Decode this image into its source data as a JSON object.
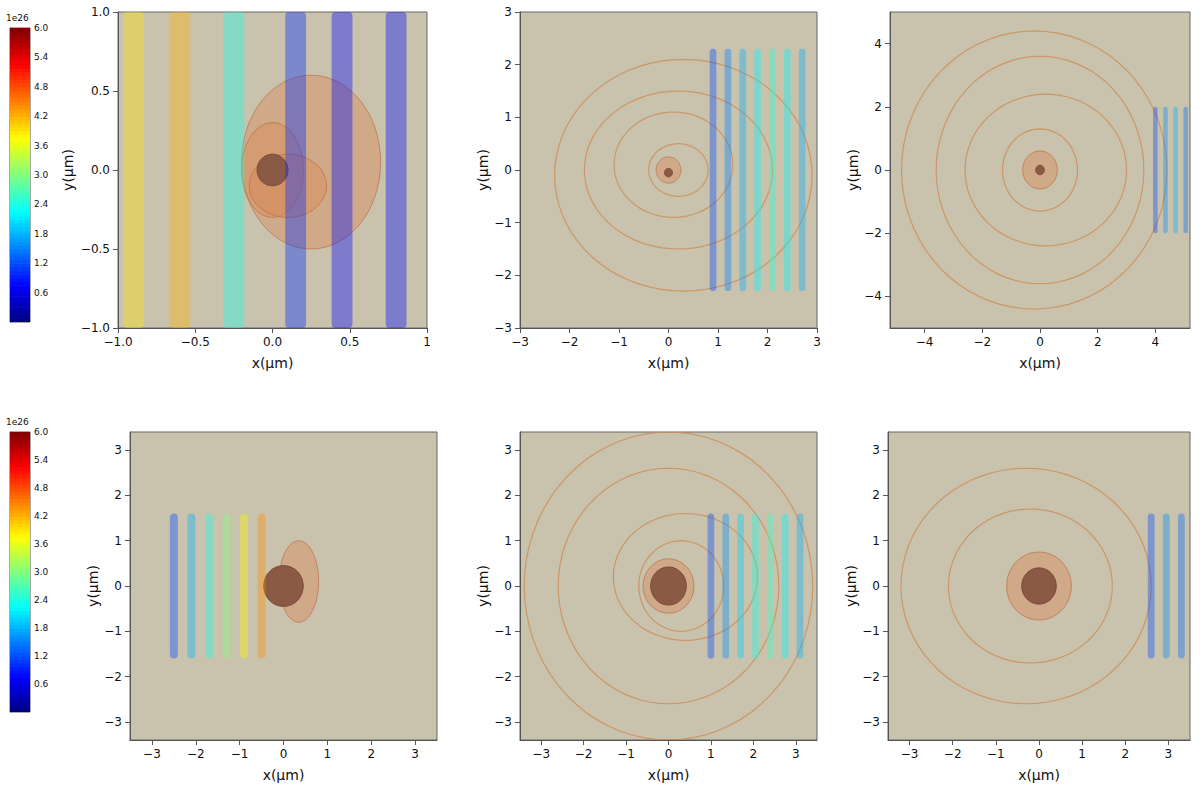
{
  "chart_data": [
    {
      "type": "colorbar",
      "label": "1e26",
      "ylim": [
        0,
        6
      ],
      "yticks": [
        0.6,
        1.2,
        1.8,
        2.4,
        {
          "value": 3,
          "label": "3.0"
        },
        3.6,
        4.2,
        4.8,
        5.4,
        {
          "value": 6,
          "label": "6.0"
        }
      ]
    },
    {
      "type": "density_map",
      "x_label": "x(μm)",
      "y_label": "y(μm)",
      "xlim": [
        -1,
        1
      ],
      "ylim": [
        -1,
        1
      ],
      "xticks": [
        {
          "value": -1,
          "label": "−1.0"
        },
        {
          "value": -0.5,
          "label": "−0.5"
        },
        {
          "value": 0,
          "label": "0.0"
        },
        0.5,
        1
      ],
      "yticks": [
        {
          "value": -1,
          "label": "−1.0"
        },
        {
          "value": -0.5,
          "label": "−0.5"
        },
        {
          "value": 0,
          "label": "0.0"
        },
        0.5,
        {
          "value": 1,
          "label": "1.0"
        }
      ],
      "target": {
        "x": 0,
        "y": 0,
        "r": 0.1
      },
      "plasma": [
        {
          "cx": 0.25,
          "cy": 0.05,
          "rx": 0.45,
          "ry": 0.55
        },
        {
          "cx": 0.0,
          "cy": 0.0,
          "rx": 0.2,
          "ry": 0.3
        },
        {
          "cx": 0.1,
          "cy": -0.1,
          "rx": 0.25,
          "ry": 0.2
        }
      ],
      "shells": [],
      "field": {
        "x": [
          -0.9,
          -0.6,
          -0.25,
          0.15,
          0.45,
          0.8
        ],
        "values": [
          3.9,
          4.2,
          2.4,
          1.0,
          0.8,
          0.8
        ],
        "y_extent": [
          -1,
          1
        ]
      }
    },
    {
      "type": "density_map",
      "x_label": "x(μm)",
      "y_label": "y(μm)",
      "xlim": [
        -3,
        3
      ],
      "ylim": [
        -3,
        3
      ],
      "xticks": [
        {
          "value": -3,
          "label": "−3"
        },
        {
          "value": -2,
          "label": "−2"
        },
        {
          "value": -1,
          "label": "−1"
        },
        0,
        1,
        2,
        3
      ],
      "yticks": [
        {
          "value": -3,
          "label": "−3"
        },
        {
          "value": -2,
          "label": "−2"
        },
        {
          "value": -1,
          "label": "−1"
        },
        0,
        1,
        2,
        3
      ],
      "target": {
        "x": 0,
        "y": -0.05,
        "r": 0.08
      },
      "plasma": [
        {
          "cx": 0,
          "cy": 0,
          "rx": 0.25,
          "ry": 0.25
        }
      ],
      "shells": [
        {
          "cx": 0.2,
          "cy": 0,
          "rx": 0.6,
          "ry": 0.5
        },
        {
          "cx": 0.1,
          "cy": 0.1,
          "rx": 1.2,
          "ry": 1.0
        },
        {
          "cx": 0.2,
          "cy": 0,
          "rx": 1.9,
          "ry": 1.5
        },
        {
          "cx": 0.3,
          "cy": -0.1,
          "rx": 2.6,
          "ry": 2.2
        }
      ],
      "field": {
        "x": [
          0.9,
          1.2,
          1.5,
          1.8,
          2.1,
          2.4,
          2.7
        ],
        "values": [
          1.2,
          1.5,
          1.8,
          2.2,
          2.5,
          2.2,
          1.8
        ],
        "y_extent": [
          -2.3,
          2.3
        ]
      }
    },
    {
      "type": "density_map",
      "x_label": "x(μm)",
      "y_label": "y(μm)",
      "xlim": [
        -5.2,
        5.2
      ],
      "ylim": [
        -5,
        5
      ],
      "xticks": [
        {
          "value": -4,
          "label": "−4"
        },
        {
          "value": -2,
          "label": "−2"
        },
        0,
        2,
        4
      ],
      "yticks": [
        {
          "value": -4,
          "label": "−4"
        },
        {
          "value": -2,
          "label": "−2"
        },
        0,
        2,
        4
      ],
      "target": {
        "x": 0,
        "y": 0,
        "r": 0.15
      },
      "plasma": [
        {
          "cx": 0,
          "cy": 0,
          "rx": 0.6,
          "ry": 0.6
        }
      ],
      "shells": [
        {
          "cx": 0,
          "cy": 0,
          "rx": 1.3,
          "ry": 1.3
        },
        {
          "cx": 0.2,
          "cy": 0,
          "rx": 2.8,
          "ry": 2.4
        },
        {
          "cx": 0,
          "cy": 0,
          "rx": 3.6,
          "ry": 3.6
        },
        {
          "cx": -0.2,
          "cy": 0,
          "rx": 4.6,
          "ry": 4.4
        }
      ],
      "field": {
        "x": [
          4.0,
          4.35,
          4.7,
          5.05
        ],
        "values": [
          1.2,
          1.6,
          1.8,
          1.4
        ],
        "y_extent": [
          -2,
          2
        ]
      }
    },
    {
      "type": "colorbar",
      "label": "1e26",
      "ylim": [
        0,
        6
      ],
      "yticks": [
        0.6,
        1.2,
        1.8,
        2.4,
        {
          "value": 3,
          "label": "3.0"
        },
        3.6,
        4.2,
        4.8,
        5.4,
        {
          "value": 6,
          "label": "6.0"
        }
      ]
    },
    {
      "type": "density_map",
      "x_label": "x(μm)",
      "y_label": "y(μm)",
      "xlim": [
        -3.5,
        3.5
      ],
      "ylim": [
        -3.4,
        3.4
      ],
      "xticks": [
        {
          "value": -3,
          "label": "−3"
        },
        {
          "value": -2,
          "label": "−2"
        },
        {
          "value": -1,
          "label": "−1"
        },
        0,
        1,
        2,
        3
      ],
      "yticks": [
        {
          "value": -3,
          "label": "−3"
        },
        {
          "value": -2,
          "label": "−2"
        },
        {
          "value": -1,
          "label": "−1"
        },
        0,
        1,
        2,
        3
      ],
      "target": {
        "x": 0,
        "y": 0,
        "r": 0.45
      },
      "plasma": [
        {
          "cx": 0.35,
          "cy": 0.1,
          "rx": 0.45,
          "ry": 0.9
        }
      ],
      "shells": [],
      "field": {
        "x": [
          -2.5,
          -2.1,
          -1.7,
          -1.3,
          -0.9,
          -0.5
        ],
        "values": [
          1.2,
          1.8,
          2.4,
          3.0,
          3.8,
          4.4
        ],
        "y_extent": [
          -1.6,
          1.6
        ]
      }
    },
    {
      "type": "density_map",
      "x_label": "x(μm)",
      "y_label": "y(μm)",
      "xlim": [
        -3.5,
        3.5
      ],
      "ylim": [
        -3.4,
        3.4
      ],
      "xticks": [
        {
          "value": -3,
          "label": "−3"
        },
        {
          "value": -2,
          "label": "−2"
        },
        {
          "value": -1,
          "label": "−1"
        },
        0,
        1,
        2,
        3
      ],
      "yticks": [
        {
          "value": -3,
          "label": "−3"
        },
        {
          "value": -2,
          "label": "−2"
        },
        {
          "value": -1,
          "label": "−1"
        },
        0,
        1,
        2,
        3
      ],
      "target": {
        "x": 0,
        "y": 0,
        "r": 0.42
      },
      "plasma": [
        {
          "cx": 0,
          "cy": 0,
          "rx": 0.6,
          "ry": 0.6
        }
      ],
      "shells": [
        {
          "cx": 0.3,
          "cy": 0,
          "rx": 1.0,
          "ry": 1.0
        },
        {
          "cx": 0.4,
          "cy": 0.2,
          "rx": 1.7,
          "ry": 1.4
        },
        {
          "cx": 0,
          "cy": 0,
          "rx": 2.6,
          "ry": 2.6
        },
        {
          "cx": 0,
          "cy": 0,
          "rx": 3.4,
          "ry": 3.4
        }
      ],
      "field": {
        "x": [
          1.0,
          1.35,
          1.7,
          2.05,
          2.4,
          2.75,
          3.1
        ],
        "values": [
          1.2,
          1.6,
          2.0,
          2.4,
          2.6,
          2.2,
          1.8
        ],
        "y_extent": [
          -1.6,
          1.6
        ]
      }
    },
    {
      "type": "density_map",
      "x_label": "x(μm)",
      "y_label": "y(μm)",
      "xlim": [
        -3.5,
        3.5
      ],
      "ylim": [
        -3.4,
        3.4
      ],
      "xticks": [
        {
          "value": -3,
          "label": "−3"
        },
        {
          "value": -2,
          "label": "−2"
        },
        {
          "value": -1,
          "label": "−1"
        },
        0,
        1,
        2,
        3
      ],
      "yticks": [
        {
          "value": -3,
          "label": "−3"
        },
        {
          "value": -2,
          "label": "−2"
        },
        {
          "value": -1,
          "label": "−1"
        },
        0,
        1,
        2,
        3
      ],
      "target": {
        "x": 0,
        "y": 0,
        "r": 0.4
      },
      "plasma": [
        {
          "cx": 0,
          "cy": 0,
          "rx": 0.75,
          "ry": 0.75
        }
      ],
      "shells": [
        {
          "cx": -0.2,
          "cy": 0,
          "rx": 1.9,
          "ry": 1.7
        },
        {
          "cx": -0.3,
          "cy": 0,
          "rx": 2.9,
          "ry": 2.6
        }
      ],
      "field": {
        "x": [
          2.6,
          2.95,
          3.3
        ],
        "values": [
          1.2,
          1.6,
          1.4
        ],
        "y_extent": [
          -1.6,
          1.6
        ]
      }
    }
  ]
}
